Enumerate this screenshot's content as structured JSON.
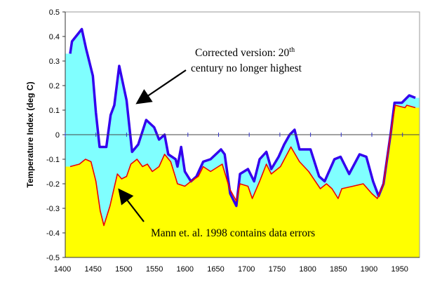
{
  "chart_data": {
    "type": "area",
    "title": "",
    "xlabel": "",
    "ylabel": "Temperature Index (deg C)",
    "xlim": [
      1400,
      1980
    ],
    "ylim": [
      -0.5,
      0.5
    ],
    "x_ticks": [
      "1400",
      "1450",
      "1500",
      "1550",
      "1600",
      "1650",
      "1700",
      "1750",
      "1800",
      "1850",
      "1900",
      "1950"
    ],
    "y_ticks": [
      "0.5",
      "0.4",
      "0.3",
      "0.2",
      "0.1",
      "0",
      "-0.1",
      "-0.2",
      "-0.3",
      "-0.4",
      "-0.5"
    ],
    "grid": false,
    "series": [
      {
        "key": "corrected",
        "line_color": "#3300ee",
        "fill_color": "#80ffff",
        "x": [
          1408,
          1411,
          1427,
          1434,
          1445,
          1450,
          1456,
          1467,
          1474,
          1480,
          1488,
          1500,
          1509,
          1519,
          1532,
          1545,
          1553,
          1562,
          1568,
          1580,
          1583,
          1589,
          1595,
          1605,
          1614,
          1625,
          1637,
          1654,
          1660,
          1669,
          1679,
          1685,
          1698,
          1708,
          1717,
          1728,
          1736,
          1748,
          1757,
          1766,
          1774,
          1782,
          1800,
          1814,
          1823,
          1839,
          1849,
          1863,
          1880,
          1891,
          1902,
          1911,
          1919,
          1931,
          1937,
          1949,
          1961,
          1971
        ],
        "y": [
          0.33,
          0.38,
          0.43,
          0.35,
          0.24,
          0.09,
          -0.05,
          -0.05,
          0.08,
          0.12,
          0.28,
          0.14,
          -0.07,
          -0.04,
          0.06,
          0.03,
          -0.02,
          0.0,
          -0.08,
          -0.1,
          -0.13,
          -0.05,
          -0.15,
          -0.19,
          -0.17,
          -0.11,
          -0.1,
          -0.06,
          -0.08,
          -0.24,
          -0.29,
          -0.16,
          -0.14,
          -0.19,
          -0.1,
          -0.07,
          -0.14,
          -0.09,
          -0.04,
          0.0,
          0.02,
          -0.06,
          -0.06,
          -0.17,
          -0.19,
          -0.1,
          -0.09,
          -0.16,
          -0.08,
          -0.09,
          -0.19,
          -0.25,
          -0.2,
          0.01,
          0.13,
          0.13,
          0.16,
          0.15
        ]
      },
      {
        "key": "mann1998",
        "line_color": "#ee0000",
        "fill_color": "#ffff00",
        "x": [
          1408,
          1423,
          1433,
          1442,
          1450,
          1457,
          1463,
          1473,
          1485,
          1492,
          1500,
          1507,
          1517,
          1526,
          1534,
          1542,
          1553,
          1562,
          1572,
          1583,
          1595,
          1605,
          1617,
          1625,
          1637,
          1656,
          1668,
          1679,
          1685,
          1698,
          1705,
          1717,
          1728,
          1736,
          1751,
          1768,
          1782,
          1797,
          1816,
          1826,
          1835,
          1845,
          1851,
          1869,
          1886,
          1900,
          1909,
          1919,
          1931,
          1938,
          1954,
          1957,
          1971
        ],
        "y": [
          -0.13,
          -0.12,
          -0.1,
          -0.11,
          -0.19,
          -0.31,
          -0.37,
          -0.29,
          -0.16,
          -0.18,
          -0.17,
          -0.12,
          -0.1,
          -0.13,
          -0.12,
          -0.15,
          -0.13,
          -0.08,
          -0.11,
          -0.2,
          -0.21,
          -0.19,
          -0.17,
          -0.13,
          -0.15,
          -0.12,
          -0.22,
          -0.27,
          -0.2,
          -0.21,
          -0.26,
          -0.19,
          -0.12,
          -0.16,
          -0.13,
          -0.05,
          -0.11,
          -0.15,
          -0.22,
          -0.2,
          -0.22,
          -0.26,
          -0.22,
          -0.21,
          -0.2,
          -0.24,
          -0.26,
          -0.2,
          0.01,
          0.12,
          0.11,
          0.12,
          0.11
        ]
      }
    ],
    "annotations": [
      {
        "text": "Corrected version: 20",
        "sup": "th",
        "line2": "century no longer highest"
      },
      {
        "text": "Mann et. al. 1998 contains data errors"
      }
    ]
  }
}
